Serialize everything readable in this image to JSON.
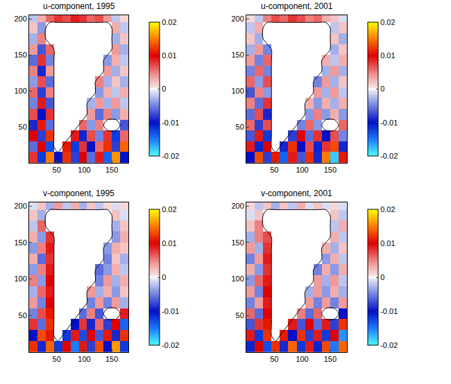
{
  "chart_data": [
    {
      "type": "heatmap",
      "title": "u-component, 1995",
      "x": [
        7.5,
        22.5,
        37.5,
        52.5,
        67.5,
        82.5,
        97.5,
        112.5,
        127.5,
        142.5,
        157.5,
        172.5
      ],
      "y": [
        7.5,
        22.5,
        37.5,
        52.5,
        67.5,
        82.5,
        97.5,
        112.5,
        127.5,
        142.5,
        157.5,
        172.5,
        187.5,
        202.5
      ],
      "xlim": [
        0,
        180
      ],
      "ylim": [
        0,
        205
      ],
      "xticks": [
        50,
        100,
        150
      ],
      "yticks": [
        50,
        100,
        150,
        200
      ],
      "colorbar_range": [
        -0.02,
        0.02
      ],
      "colorbar_ticks": [
        -0.02,
        -0.01,
        0,
        0.01,
        0.02
      ],
      "cells": [
        [
          0.008,
          -0.012,
          0.015,
          -0.01,
          0.012,
          -0.008,
          0.01,
          -0.006,
          0.009,
          -0.014,
          0.016,
          -0.01
        ],
        [
          -0.006,
          0.01,
          -0.013,
          null,
          0.011,
          -0.012,
          0.008,
          -0.01,
          0.006,
          0.012,
          -0.008,
          0.014
        ],
        [
          0.01,
          -0.008,
          0.012,
          null,
          null,
          0.009,
          -0.011,
          0.007,
          -0.005,
          0.008,
          -0.012,
          0.006
        ],
        [
          -0.009,
          0.011,
          -0.006,
          null,
          null,
          null,
          0.006,
          -0.004,
          0.005,
          null,
          null,
          -0.007
        ],
        [
          0.007,
          -0.01,
          0.008,
          null,
          null,
          null,
          null,
          0.004,
          -0.006,
          0.005,
          -0.004,
          0.003
        ],
        [
          -0.005,
          0.009,
          -0.007,
          null,
          null,
          null,
          null,
          -0.003,
          0.004,
          -0.003,
          0.004,
          -0.002
        ],
        [
          0.006,
          -0.008,
          0.005,
          null,
          null,
          null,
          null,
          null,
          -0.004,
          0.003,
          -0.002,
          0.003
        ],
        [
          -0.004,
          0.007,
          -0.006,
          null,
          null,
          null,
          null,
          null,
          0.005,
          -0.003,
          0.002,
          -0.003
        ],
        [
          0.005,
          -0.009,
          0.004,
          null,
          null,
          null,
          null,
          null,
          null,
          0.004,
          -0.003,
          0.002
        ],
        [
          -0.006,
          0.008,
          -0.005,
          null,
          null,
          null,
          null,
          null,
          null,
          -0.004,
          0.003,
          -0.002
        ],
        [
          0.004,
          -0.007,
          0.006,
          null,
          null,
          null,
          null,
          null,
          null,
          null,
          0.004,
          -0.003
        ],
        [
          -0.003,
          0.005,
          null,
          null,
          null,
          null,
          null,
          null,
          null,
          null,
          -0.003,
          0.002
        ],
        [
          0.002,
          -0.004,
          null,
          null,
          null,
          null,
          null,
          null,
          null,
          null,
          0.003,
          -0.002
        ],
        [
          -0.002,
          0.003,
          0.006,
          0.008,
          0.007,
          0.009,
          0.008,
          0.006,
          0.007,
          0.004,
          -0.002,
          0.001
        ]
      ]
    },
    {
      "type": "heatmap",
      "title": "u-component, 2001",
      "x": [
        7.5,
        22.5,
        37.5,
        52.5,
        67.5,
        82.5,
        97.5,
        112.5,
        127.5,
        142.5,
        157.5,
        172.5
      ],
      "y": [
        7.5,
        22.5,
        37.5,
        52.5,
        67.5,
        82.5,
        97.5,
        112.5,
        127.5,
        142.5,
        157.5,
        172.5,
        187.5,
        202.5
      ],
      "xlim": [
        0,
        180
      ],
      "ylim": [
        0,
        205
      ],
      "xticks": [
        50,
        100,
        150
      ],
      "yticks": [
        50,
        100,
        150,
        200
      ],
      "colorbar_range": [
        -0.02,
        0.02
      ],
      "colorbar_ticks": [
        -0.02,
        -0.01,
        0,
        0.01,
        0.02
      ],
      "cells": [
        [
          -0.01,
          0.013,
          -0.008,
          0.011,
          -0.014,
          0.009,
          -0.007,
          0.012,
          -0.009,
          0.015,
          -0.018,
          0.011
        ],
        [
          0.009,
          -0.011,
          0.01,
          null,
          -0.009,
          0.012,
          -0.01,
          0.007,
          -0.011,
          0.008,
          0.013,
          -0.009
        ],
        [
          -0.007,
          0.009,
          -0.012,
          null,
          null,
          -0.008,
          0.01,
          -0.006,
          0.008,
          -0.01,
          0.007,
          -0.005
        ],
        [
          0.006,
          -0.008,
          0.007,
          null,
          null,
          null,
          -0.005,
          0.006,
          -0.004,
          null,
          null,
          0.006
        ],
        [
          -0.006,
          0.007,
          -0.009,
          null,
          null,
          null,
          null,
          -0.004,
          0.005,
          -0.004,
          0.003,
          -0.004
        ],
        [
          0.005,
          -0.006,
          0.008,
          null,
          null,
          null,
          null,
          0.003,
          -0.004,
          0.003,
          -0.003,
          0.003
        ],
        [
          -0.007,
          0.005,
          -0.004,
          null,
          null,
          null,
          null,
          null,
          0.004,
          -0.003,
          0.004,
          -0.002
        ],
        [
          0.006,
          -0.004,
          0.007,
          null,
          null,
          null,
          null,
          null,
          -0.005,
          0.004,
          -0.003,
          0.002
        ],
        [
          -0.005,
          0.006,
          -0.005,
          null,
          null,
          null,
          null,
          null,
          null,
          -0.003,
          0.004,
          -0.003
        ],
        [
          0.004,
          -0.005,
          0.006,
          null,
          null,
          null,
          null,
          null,
          null,
          0.003,
          -0.002,
          0.003
        ],
        [
          -0.003,
          0.004,
          -0.005,
          null,
          null,
          null,
          null,
          null,
          null,
          null,
          -0.003,
          0.002
        ],
        [
          0.002,
          -0.003,
          null,
          null,
          null,
          null,
          null,
          null,
          null,
          null,
          0.002,
          -0.003
        ],
        [
          -0.002,
          0.003,
          null,
          null,
          null,
          null,
          null,
          null,
          null,
          null,
          -0.002,
          0.002
        ],
        [
          0.001,
          -0.002,
          0.005,
          0.007,
          0.006,
          0.008,
          0.007,
          0.005,
          0.006,
          0.003,
          0.002,
          -0.001
        ]
      ]
    },
    {
      "type": "heatmap",
      "title": "v-component, 1995",
      "x": [
        7.5,
        22.5,
        37.5,
        52.5,
        67.5,
        82.5,
        97.5,
        112.5,
        127.5,
        142.5,
        157.5,
        172.5
      ],
      "y": [
        7.5,
        22.5,
        37.5,
        52.5,
        67.5,
        82.5,
        97.5,
        112.5,
        127.5,
        142.5,
        157.5,
        172.5,
        187.5,
        202.5
      ],
      "xlim": [
        0,
        180
      ],
      "ylim": [
        0,
        205
      ],
      "xticks": [
        50,
        100,
        150
      ],
      "yticks": [
        50,
        100,
        150,
        200
      ],
      "colorbar_range": [
        -0.02,
        0.02
      ],
      "colorbar_ticks": [
        -0.02,
        -0.01,
        0,
        0.01,
        0.02
      ],
      "cells": [
        [
          0.012,
          -0.009,
          0.014,
          -0.012,
          0.01,
          -0.015,
          0.011,
          -0.008,
          0.013,
          -0.01,
          0.016,
          -0.012
        ],
        [
          -0.01,
          0.013,
          0.011,
          null,
          -0.012,
          0.009,
          -0.013,
          0.01,
          -0.007,
          0.011,
          -0.009,
          0.012
        ],
        [
          0.008,
          -0.006,
          0.012,
          null,
          null,
          -0.01,
          0.008,
          -0.009,
          0.006,
          -0.008,
          0.01,
          -0.014
        ],
        [
          -0.005,
          0.007,
          0.011,
          null,
          null,
          null,
          -0.006,
          0.005,
          -0.007,
          null,
          null,
          0.009
        ],
        [
          0.004,
          -0.005,
          0.01,
          null,
          null,
          null,
          null,
          -0.005,
          0.004,
          -0.005,
          0.004,
          -0.003
        ],
        [
          -0.003,
          0.006,
          0.009,
          null,
          null,
          null,
          null,
          0.004,
          -0.003,
          0.003,
          -0.004,
          0.002
        ],
        [
          0.005,
          -0.004,
          0.01,
          null,
          null,
          null,
          null,
          null,
          -0.005,
          0.004,
          -0.003,
          0.003
        ],
        [
          -0.004,
          0.005,
          0.009,
          null,
          null,
          null,
          null,
          null,
          -0.006,
          -0.004,
          0.003,
          -0.002
        ],
        [
          0.003,
          -0.006,
          0.008,
          null,
          null,
          null,
          null,
          null,
          null,
          -0.005,
          0.002,
          -0.003
        ],
        [
          -0.004,
          0.005,
          0.009,
          null,
          null,
          null,
          null,
          null,
          null,
          -0.004,
          0.003,
          0.002
        ],
        [
          0.003,
          -0.004,
          0.008,
          null,
          null,
          null,
          null,
          null,
          null,
          null,
          -0.004,
          0.003
        ],
        [
          -0.002,
          0.006,
          null,
          null,
          null,
          null,
          null,
          null,
          null,
          null,
          -0.003,
          0.002
        ],
        [
          0.002,
          -0.003,
          null,
          null,
          null,
          null,
          null,
          null,
          null,
          null,
          0.002,
          -0.001
        ],
        [
          -0.001,
          0.002,
          -0.003,
          0.004,
          -0.002,
          0.003,
          -0.003,
          0.002,
          -0.002,
          0.001,
          -0.001,
          0.001
        ]
      ]
    },
    {
      "type": "heatmap",
      "title": "v-component, 2001",
      "x": [
        7.5,
        22.5,
        37.5,
        52.5,
        67.5,
        82.5,
        97.5,
        112.5,
        127.5,
        142.5,
        157.5,
        172.5
      ],
      "y": [
        7.5,
        22.5,
        37.5,
        52.5,
        67.5,
        82.5,
        97.5,
        112.5,
        127.5,
        142.5,
        157.5,
        172.5,
        187.5,
        202.5
      ],
      "xlim": [
        0,
        180
      ],
      "ylim": [
        0,
        205
      ],
      "xticks": [
        50,
        100,
        150
      ],
      "yticks": [
        50,
        100,
        150,
        200
      ],
      "colorbar_range": [
        -0.02,
        0.02
      ],
      "colorbar_ticks": [
        -0.02,
        -0.01,
        0,
        0.01,
        0.02
      ],
      "cells": [
        [
          -0.011,
          0.01,
          -0.013,
          0.012,
          -0.009,
          0.014,
          -0.012,
          0.009,
          -0.011,
          0.013,
          -0.015,
          0.014
        ],
        [
          0.009,
          -0.012,
          0.012,
          null,
          0.011,
          -0.01,
          0.012,
          -0.008,
          0.009,
          -0.012,
          0.01,
          -0.016
        ],
        [
          -0.007,
          0.008,
          0.011,
          null,
          null,
          0.009,
          -0.007,
          0.01,
          -0.006,
          0.009,
          -0.008,
          0.012
        ],
        [
          0.006,
          -0.006,
          0.01,
          null,
          null,
          null,
          0.005,
          -0.006,
          0.006,
          null,
          null,
          -0.01
        ],
        [
          -0.005,
          0.004,
          0.009,
          null,
          null,
          null,
          null,
          0.004,
          -0.005,
          0.004,
          -0.005,
          0.004
        ],
        [
          0.004,
          -0.005,
          0.01,
          null,
          null,
          null,
          null,
          -0.003,
          0.004,
          -0.004,
          0.003,
          -0.003
        ],
        [
          -0.004,
          0.006,
          0.009,
          null,
          null,
          null,
          null,
          null,
          0.004,
          -0.003,
          0.004,
          -0.002
        ],
        [
          0.003,
          -0.004,
          0.008,
          null,
          null,
          null,
          null,
          null,
          -0.005,
          0.003,
          -0.004,
          0.003
        ],
        [
          -0.005,
          0.004,
          0.009,
          null,
          null,
          null,
          null,
          null,
          null,
          -0.004,
          0.003,
          -0.002
        ],
        [
          0.004,
          -0.003,
          0.008,
          null,
          null,
          null,
          null,
          null,
          null,
          0.003,
          -0.003,
          0.002
        ],
        [
          -0.003,
          0.005,
          0.007,
          null,
          null,
          null,
          null,
          null,
          null,
          null,
          0.003,
          -0.002
        ],
        [
          0.002,
          0.005,
          null,
          null,
          null,
          null,
          null,
          null,
          null,
          null,
          -0.002,
          0.003
        ],
        [
          -0.001,
          0.002,
          null,
          null,
          null,
          null,
          null,
          null,
          null,
          null,
          0.002,
          -0.002
        ],
        [
          0.001,
          -0.002,
          0.002,
          -0.003,
          0.002,
          -0.002,
          0.003,
          -0.001,
          0.002,
          -0.001,
          0.001,
          -0.001
        ]
      ]
    }
  ]
}
